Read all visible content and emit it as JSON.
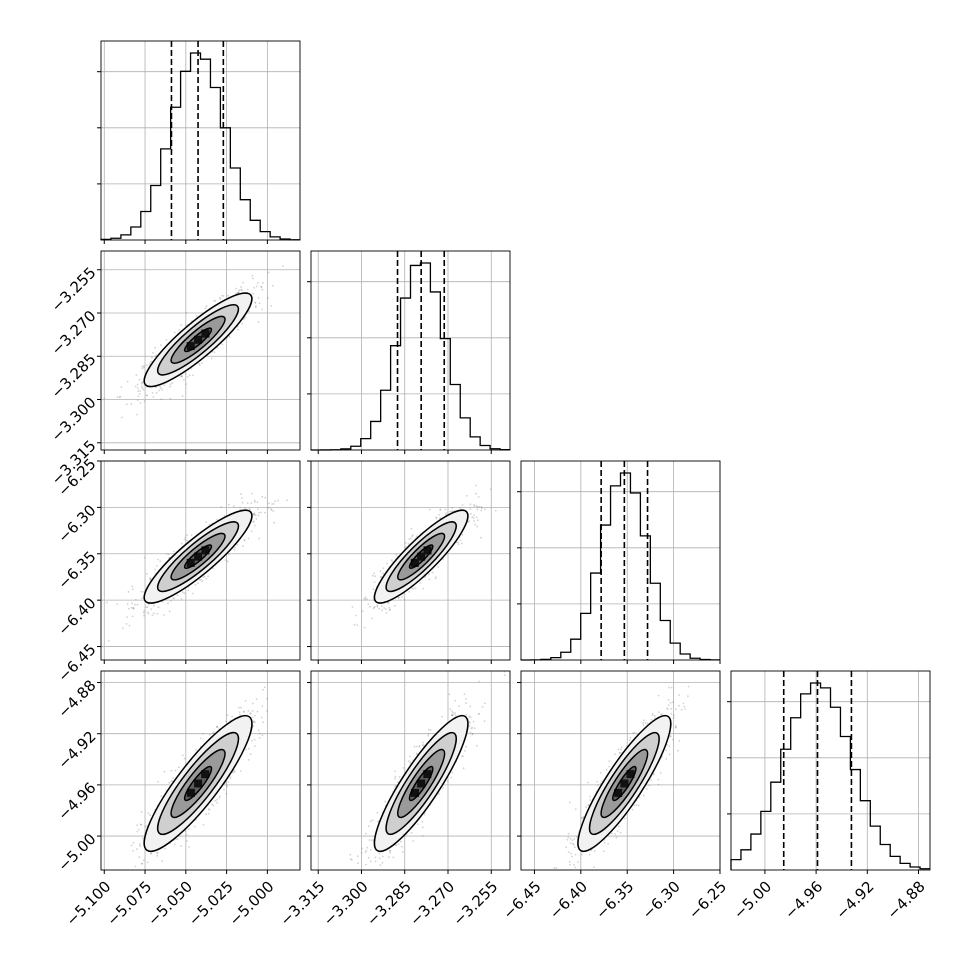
{
  "chart_data": {
    "type": "corner",
    "description_hint": "",
    "colors": {
      "line": "#000000",
      "grid": "#b0b0b0",
      "points": "#808080",
      "density_dark": "#000000",
      "density_light": "#ffffff"
    },
    "grid": true,
    "parameters": [
      {
        "index": 0,
        "range": [
          -5.102,
          -4.98
        ],
        "ticks": [
          "-5.100",
          "-5.075",
          "-5.050",
          "-5.025",
          "-5.000"
        ],
        "tick_values": [
          -5.1,
          -5.075,
          -5.05,
          -5.025,
          -5.0
        ],
        "quantiles": [
          -5.0588,
          -5.0425,
          -5.027
        ],
        "center": -5.0425,
        "sigma": 0.0165
      },
      {
        "index": 1,
        "range": [
          -3.3175,
          -3.2485
        ],
        "ticks": [
          "-3.315",
          "-3.300",
          "-3.285",
          "-3.270",
          "-3.255"
        ],
        "tick_values": [
          -3.315,
          -3.3,
          -3.285,
          -3.27,
          -3.255
        ],
        "quantiles": [
          -3.2875,
          -3.2793,
          -3.2713
        ],
        "center": -3.2793,
        "sigma": 0.0081
      },
      {
        "index": 2,
        "range": [
          -6.4645,
          -6.25
        ],
        "ticks": [
          "-6.45",
          "-6.40",
          "-6.35",
          "-6.30",
          "-6.25"
        ],
        "tick_values": [
          -6.45,
          -6.4,
          -6.35,
          -6.3,
          -6.25
        ],
        "quantiles": [
          -6.3781,
          -6.3531,
          -6.3281
        ],
        "center": -6.3531,
        "sigma": 0.025
      },
      {
        "index": 3,
        "range": [
          -5.0265,
          -4.871
        ],
        "ticks": [
          "-5.00",
          "-4.96",
          "-4.92",
          "-4.88"
        ],
        "tick_values": [
          -5.0,
          -4.96,
          -4.92,
          -4.88
        ],
        "quantiles": [
          -4.9853,
          -4.9589,
          -4.9324
        ],
        "center": -4.9589,
        "sigma": 0.0265
      }
    ],
    "correlation": 0.88,
    "contour_levels_sigma": [
      0.5,
      1.0,
      1.5,
      2.0
    ],
    "xlabel": "",
    "ylabel": "",
    "title": ""
  }
}
